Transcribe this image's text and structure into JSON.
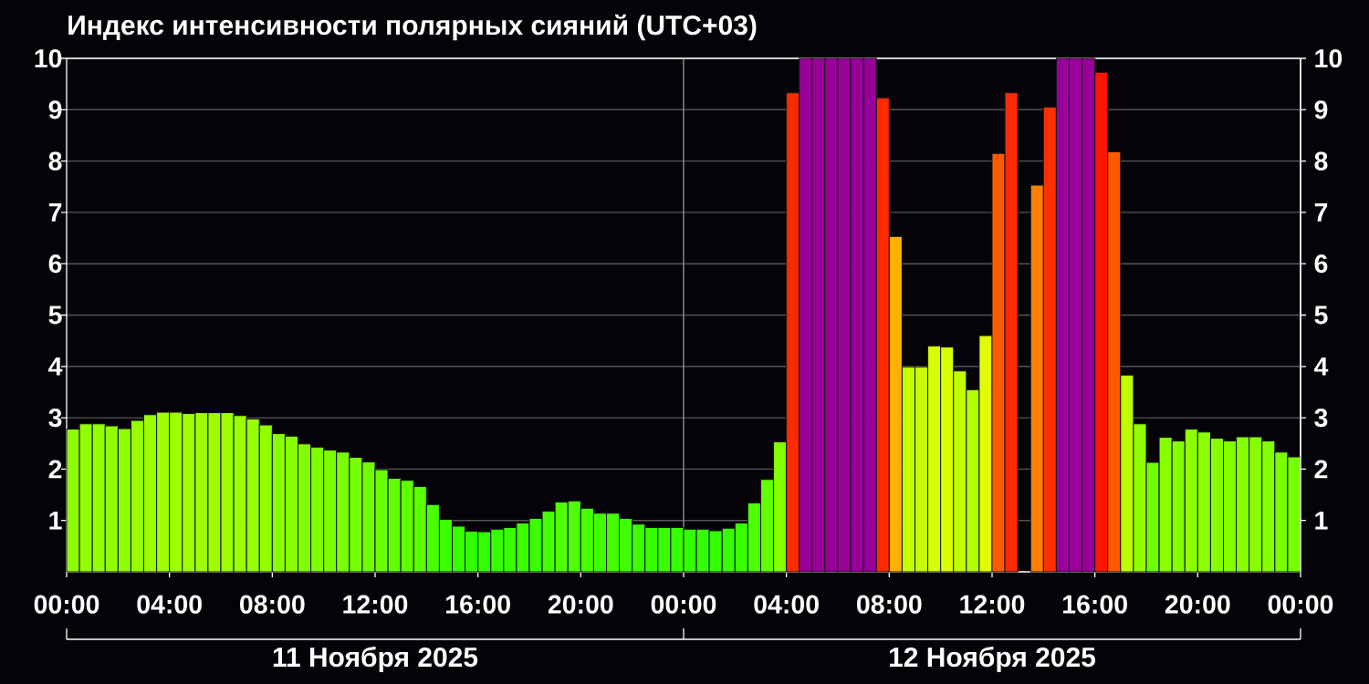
{
  "chart_data": {
    "type": "bar",
    "title": "Индекс интенсивности полярных сияний (UTC+03)",
    "x": [
      "2025-11-11T00:15",
      "2025-11-11T00:45",
      "2025-11-11T01:15",
      "2025-11-11T01:45",
      "2025-11-11T02:15",
      "2025-11-11T02:45",
      "2025-11-11T03:15",
      "2025-11-11T03:45",
      "2025-11-11T04:15",
      "2025-11-11T04:45",
      "2025-11-11T05:15",
      "2025-11-11T05:45",
      "2025-11-11T06:15",
      "2025-11-11T06:45",
      "2025-11-11T07:15",
      "2025-11-11T07:45",
      "2025-11-11T08:15",
      "2025-11-11T08:45",
      "2025-11-11T09:15",
      "2025-11-11T09:45",
      "2025-11-11T10:15",
      "2025-11-11T10:45",
      "2025-11-11T11:15",
      "2025-11-11T11:45",
      "2025-11-11T12:15",
      "2025-11-11T12:45",
      "2025-11-11T13:15",
      "2025-11-11T13:45",
      "2025-11-11T14:15",
      "2025-11-11T14:45",
      "2025-11-11T15:15",
      "2025-11-11T15:45",
      "2025-11-11T16:15",
      "2025-11-11T16:45",
      "2025-11-11T17:15",
      "2025-11-11T17:45",
      "2025-11-11T18:15",
      "2025-11-11T18:45",
      "2025-11-11T19:15",
      "2025-11-11T19:45",
      "2025-11-11T20:15",
      "2025-11-11T20:45",
      "2025-11-11T21:15",
      "2025-11-11T21:45",
      "2025-11-11T22:15",
      "2025-11-11T22:45",
      "2025-11-11T23:15",
      "2025-11-11T23:45",
      "2025-11-12T00:15",
      "2025-11-12T00:45",
      "2025-11-12T01:15",
      "2025-11-12T01:45",
      "2025-11-12T02:15",
      "2025-11-12T02:45",
      "2025-11-12T03:15",
      "2025-11-12T03:45",
      "2025-11-12T04:15",
      "2025-11-12T04:45",
      "2025-11-12T05:15",
      "2025-11-12T05:45",
      "2025-11-12T06:15",
      "2025-11-12T06:45",
      "2025-11-12T07:15",
      "2025-11-12T07:45",
      "2025-11-12T08:15",
      "2025-11-12T08:45",
      "2025-11-12T09:15",
      "2025-11-12T09:45",
      "2025-11-12T10:15",
      "2025-11-12T10:45",
      "2025-11-12T11:15",
      "2025-11-12T11:45",
      "2025-11-12T12:15",
      "2025-11-12T12:45",
      "2025-11-12T13:15",
      "2025-11-12T13:45",
      "2025-11-12T14:15",
      "2025-11-12T14:45",
      "2025-11-12T15:15",
      "2025-11-12T15:45",
      "2025-11-12T16:15",
      "2025-11-12T16:45",
      "2025-11-12T17:15",
      "2025-11-12T17:45",
      "2025-11-12T18:15",
      "2025-11-12T18:45",
      "2025-11-12T19:15",
      "2025-11-12T19:45",
      "2025-11-12T20:15",
      "2025-11-12T20:45",
      "2025-11-12T21:15",
      "2025-11-12T21:45",
      "2025-11-12T22:15",
      "2025-11-12T22:45",
      "2025-11-12T23:15",
      "2025-11-12T23:45"
    ],
    "values": [
      2.78,
      2.88,
      2.88,
      2.84,
      2.79,
      2.95,
      3.06,
      3.11,
      3.11,
      3.08,
      3.1,
      3.1,
      3.1,
      3.04,
      2.98,
      2.86,
      2.69,
      2.64,
      2.49,
      2.43,
      2.37,
      2.33,
      2.23,
      2.14,
      1.99,
      1.82,
      1.78,
      1.66,
      1.31,
      1.02,
      0.89,
      0.79,
      0.78,
      0.83,
      0.86,
      0.95,
      1.04,
      1.18,
      1.36,
      1.38,
      1.24,
      1.14,
      1.14,
      1.04,
      0.93,
      0.86,
      0.86,
      0.86,
      0.83,
      0.83,
      0.8,
      0.85,
      0.95,
      1.34,
      1.8,
      2.53,
      9.33,
      10,
      10,
      10,
      10,
      10,
      10,
      9.23,
      6.53,
      3.99,
      3.99,
      4.4,
      4.38,
      3.91,
      3.55,
      4.6,
      8.15,
      9.33,
      null,
      7.53,
      9.05,
      10,
      10,
      10,
      9.73,
      8.18,
      3.83,
      2.88,
      2.13,
      2.62,
      2.55,
      2.78,
      2.72,
      2.6,
      2.55,
      2.63,
      2.63,
      2.55,
      2.33,
      2.24
    ],
    "colors": [
      "#8eff00",
      "#92ff00",
      "#92ff00",
      "#91ff00",
      "#8eff00",
      "#96ff00",
      "#9bff00",
      "#9dff00",
      "#9dff00",
      "#9cff00",
      "#9dff00",
      "#9dff00",
      "#9dff00",
      "#9aff00",
      "#97ff00",
      "#92ff00",
      "#8aff00",
      "#87ff00",
      "#81ff00",
      "#7eff00",
      "#7bff00",
      "#79ff00",
      "#75ff00",
      "#70ff00",
      "#6aff00",
      "#62ff00",
      "#60ff00",
      "#5aff00",
      "#4aff00",
      "#3dff00",
      "#37ff00",
      "#32ff00",
      "#32ff00",
      "#34ff00",
      "#36ff00",
      "#3aff00",
      "#3eff00",
      "#44ff00",
      "#4dff00",
      "#4dff00",
      "#47ff00",
      "#42ff00",
      "#42ff00",
      "#3eff00",
      "#39ff00",
      "#36ff00",
      "#36ff00",
      "#36ff00",
      "#34ff00",
      "#34ff00",
      "#33ff00",
      "#35ff00",
      "#3aff00",
      "#4cff00",
      "#61ff00",
      "#82ff00",
      "#ff2a00",
      "#990099",
      "#990099",
      "#990099",
      "#990099",
      "#990099",
      "#990099",
      "#ff2a00",
      "#ffb000",
      "#c5ff00",
      "#c5ff00",
      "#d8ff00",
      "#d7ff00",
      "#c2ff00",
      "#b1ff00",
      "#e2ff00",
      "#ff5a00",
      "#ff2a00",
      null,
      "#ff8000",
      "#ff3000",
      "#990099",
      "#990099",
      "#990099",
      "#ff1400",
      "#ff5a00",
      "#beff00",
      "#92ff00",
      "#70ff00",
      "#87ff00",
      "#83ff00",
      "#8eff00",
      "#8bff00",
      "#86ff00",
      "#83ff00",
      "#87ff00",
      "#87ff00",
      "#83ff00",
      "#79ff00",
      "#75ff00"
    ],
    "xlim": [
      "2025-11-11T00:00",
      "2025-11-13T00:00"
    ],
    "xticks": [
      {
        "value": "2025-11-11T00:00",
        "label": "00:00"
      },
      {
        "value": "2025-11-11T04:00",
        "label": "04:00"
      },
      {
        "value": "2025-11-11T08:00",
        "label": "08:00"
      },
      {
        "value": "2025-11-11T12:00",
        "label": "12:00"
      },
      {
        "value": "2025-11-11T16:00",
        "label": "16:00"
      },
      {
        "value": "2025-11-11T20:00",
        "label": "20:00"
      },
      {
        "value": "2025-11-12T00:00",
        "label": "00:00"
      },
      {
        "value": "2025-11-12T04:00",
        "label": "04:00"
      },
      {
        "value": "2025-11-12T08:00",
        "label": "08:00"
      },
      {
        "value": "2025-11-12T12:00",
        "label": "12:00"
      },
      {
        "value": "2025-11-12T16:00",
        "label": "16:00"
      },
      {
        "value": "2025-11-12T20:00",
        "label": "20:00"
      },
      {
        "value": "2025-11-13T00:00",
        "label": "00:00"
      }
    ],
    "ylim": [
      0,
      10
    ],
    "yticks": [
      1,
      2,
      3,
      4,
      5,
      6,
      7,
      8,
      9,
      10
    ],
    "y2lim": [
      0,
      10
    ],
    "y2ticks": [
      1,
      2,
      3,
      4,
      5,
      6,
      7,
      8,
      9,
      10
    ],
    "grid": "y",
    "ref_lines": [
      {
        "axis": "x",
        "value": "2025-11-12T00:00",
        "color": "#9a9a9a"
      }
    ],
    "annotations": [
      "11 Ноября 2025",
      "12 Ноября 2025"
    ]
  }
}
